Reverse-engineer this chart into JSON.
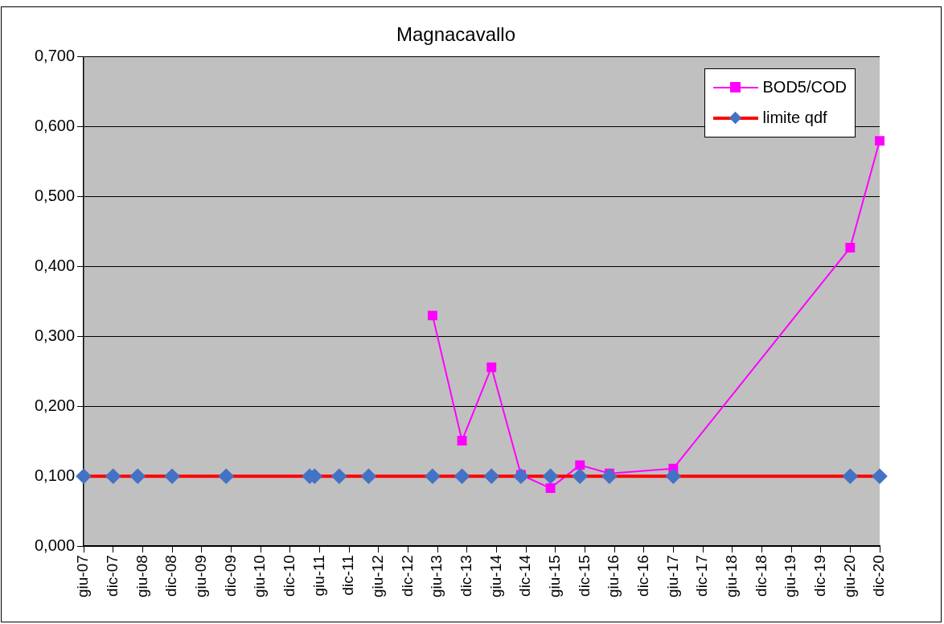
{
  "chart_data": {
    "type": "line",
    "title": "Magnacavallo",
    "x": [
      "2013-05",
      "2013-11",
      "2014-05",
      "2014-11",
      "2015-05",
      "2015-11",
      "2016-05",
      "2017-06",
      "2020-06",
      "2020-12"
    ],
    "series": [
      {
        "name": "BOD5/COD",
        "color": "#ff00ff",
        "marker": "square",
        "values": [
          0.33,
          0.151,
          0.256,
          0.102,
          0.083,
          0.116,
          0.104,
          0.111,
          0.427,
          0.58
        ]
      },
      {
        "name": "limite qdf",
        "color": "#ff0000",
        "marker": "diamond",
        "x": [
          "2007-06",
          "2007-12",
          "2008-05",
          "2008-12",
          "2009-11",
          "2011-04",
          "2011-05",
          "2011-10",
          "2012-04",
          "2013-05",
          "2013-11",
          "2014-05",
          "2014-11",
          "2015-05",
          "2015-11",
          "2016-05",
          "2017-06",
          "2020-06",
          "2020-12"
        ],
        "colors": [
          "#4472c4",
          "#4472c4",
          "#4472c4",
          "#4472c4",
          "#4472c4",
          "#4472c4",
          "#4472c4",
          "#4472c4",
          "#4472c4",
          "#4472c4",
          "#4472c4",
          "#4472c4",
          "#4472c4",
          "#4472c4",
          "#4472c4",
          "#4472c4",
          "#4472c4",
          "#4472c4",
          "#4472c4"
        ],
        "values": [
          0.1,
          0.1,
          0.1,
          0.1,
          0.1,
          0.1,
          0.1,
          0.1,
          0.1,
          0.1,
          0.1,
          0.1,
          0.1,
          0.1,
          0.1,
          0.1,
          0.1,
          0.1,
          0.1
        ]
      }
    ],
    "xlim": [
      "2007-06",
      "2020-12"
    ],
    "xticks": [
      {
        "value": "2007-06",
        "label": "giu-07"
      },
      {
        "value": "2007-12",
        "label": "dic-07"
      },
      {
        "value": "2008-06",
        "label": "giu-08"
      },
      {
        "value": "2008-12",
        "label": "dic-08"
      },
      {
        "value": "2009-06",
        "label": "giu-09"
      },
      {
        "value": "2009-12",
        "label": "dic-09"
      },
      {
        "value": "2010-06",
        "label": "giu-10"
      },
      {
        "value": "2010-12",
        "label": "dic-10"
      },
      {
        "value": "2011-06",
        "label": "giu-11"
      },
      {
        "value": "2011-12",
        "label": "dic-11"
      },
      {
        "value": "2012-06",
        "label": "giu-12"
      },
      {
        "value": "2012-12",
        "label": "dic-12"
      },
      {
        "value": "2013-06",
        "label": "giu-13"
      },
      {
        "value": "2013-12",
        "label": "dic-13"
      },
      {
        "value": "2014-06",
        "label": "giu-14"
      },
      {
        "value": "2014-12",
        "label": "dic-14"
      },
      {
        "value": "2015-06",
        "label": "giu-15"
      },
      {
        "value": "2015-12",
        "label": "dic-15"
      },
      {
        "value": "2016-06",
        "label": "giu-16"
      },
      {
        "value": "2016-12",
        "label": "dic-16"
      },
      {
        "value": "2017-06",
        "label": "giu-17"
      },
      {
        "value": "2017-12",
        "label": "dic-17"
      },
      {
        "value": "2018-06",
        "label": "giu-18"
      },
      {
        "value": "2018-12",
        "label": "dic-18"
      },
      {
        "value": "2019-06",
        "label": "giu-19"
      },
      {
        "value": "2019-12",
        "label": "dic-19"
      },
      {
        "value": "2020-06",
        "label": "giu-20"
      },
      {
        "value": "2020-12",
        "label": "dic-20"
      }
    ],
    "ylim": [
      0,
      0.7
    ],
    "yticks": [
      {
        "value": 0,
        "label": "0,000"
      },
      {
        "value": 0.1,
        "label": "0,100"
      },
      {
        "value": 0.2,
        "label": "0,200"
      },
      {
        "value": 0.3,
        "label": "0,300"
      },
      {
        "value": 0.4,
        "label": "0,400"
      },
      {
        "value": 0.5,
        "label": "0,500"
      },
      {
        "value": 0.6,
        "label": "0,600"
      },
      {
        "value": 0.7,
        "label": "0,700"
      }
    ],
    "grid": "y",
    "legend": "top right"
  }
}
